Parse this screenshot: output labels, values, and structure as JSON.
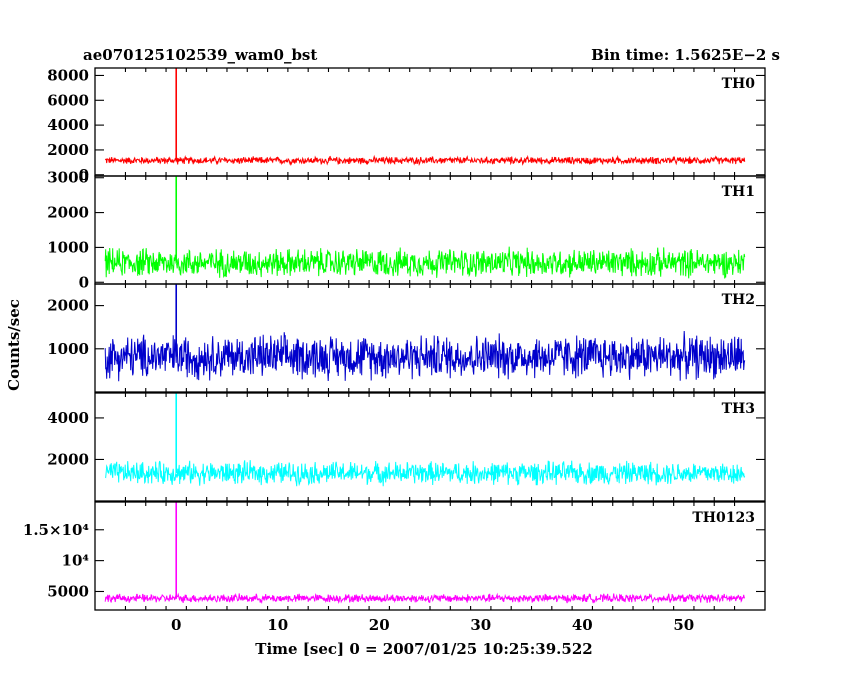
{
  "chart_data": {
    "type": "line",
    "title": "ae070125102539_wam0_bst",
    "subtitle": "Bin time: 1.5625E−2 s",
    "xlabel": "Time [sec] 0 = 2007/01/25 10:25:39.522",
    "ylabel": "Counts/sec",
    "xlim": [
      -8,
      58
    ],
    "x_ticks": [
      0,
      10,
      20,
      30,
      40,
      50
    ],
    "x_tick_labels": [
      "0",
      "10",
      "20",
      "30",
      "40",
      "50"
    ],
    "grid": false,
    "legend": "none",
    "panels": [
      {
        "name": "TH0",
        "color": "#ff0000",
        "ylim": [
          -100,
          8600
        ],
        "y_ticks": [
          0,
          2000,
          4000,
          6000,
          8000
        ],
        "y_tick_labels": [
          "0",
          "2000",
          "4000",
          "6000",
          "8000"
        ],
        "baseline": 1150,
        "spread": 350,
        "peak": 9000,
        "data_range": [
          -7,
          56
        ],
        "spike_at": 0
      },
      {
        "name": "TH1",
        "color": "#00ff00",
        "ylim": [
          -50,
          3050
        ],
        "y_ticks": [
          0,
          1000,
          2000,
          3000
        ],
        "y_tick_labels": [
          "0",
          "1000",
          "2000",
          "3000"
        ],
        "baseline": 560,
        "spread": 480,
        "peak": 3100,
        "data_range": [
          -7,
          56
        ],
        "spike_at": 0
      },
      {
        "name": "TH2",
        "color": "#0000cc",
        "ylim": [
          0,
          2500
        ],
        "y_ticks": [
          1000,
          2000
        ],
        "y_tick_labels": [
          "1000",
          "2000"
        ],
        "baseline": 820,
        "spread": 600,
        "peak": 2600,
        "data_range": [
          -7,
          56
        ],
        "spike_at": 0
      },
      {
        "name": "TH3",
        "color": "#00ffff",
        "ylim": [
          0,
          5200
        ],
        "y_ticks": [
          2000,
          4000
        ],
        "y_tick_labels": [
          "2000",
          "4000"
        ],
        "baseline": 1350,
        "spread": 650,
        "peak": 5300,
        "data_range": [
          -7,
          56
        ],
        "spike_at": 0
      },
      {
        "name": "TH0123",
        "color": "#ff00ff",
        "ylim": [
          2000,
          19500
        ],
        "y_ticks": [
          5000,
          10000,
          15000
        ],
        "y_tick_labels": [
          "5000",
          "10⁴",
          "1.5×10⁴"
        ],
        "baseline": 3900,
        "spread": 800,
        "peak": 19500,
        "data_range": [
          -7,
          56
        ],
        "spike_at": 0
      }
    ]
  }
}
